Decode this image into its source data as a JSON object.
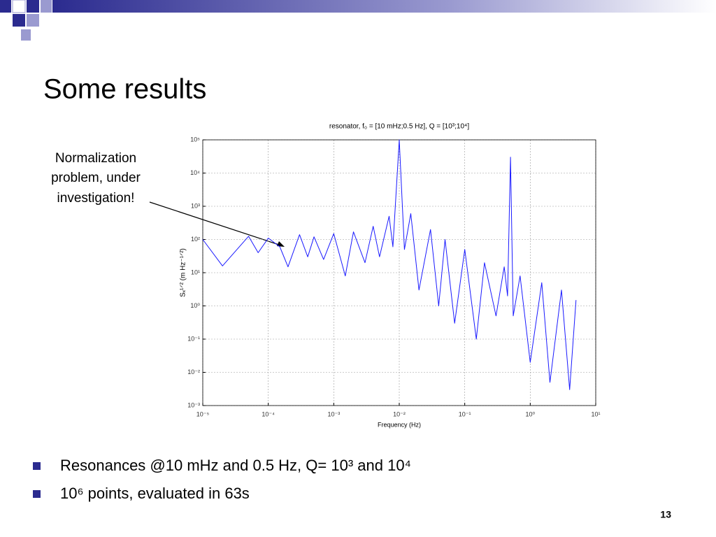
{
  "slide": {
    "title": "Some results",
    "annotation": [
      "Normalization",
      "problem, under",
      "investigation!"
    ],
    "bullets": [
      "Resonances @10 mHz and 0.5 Hz, Q= 10³ and 10⁴",
      "10⁶ points, evaluated in 63s"
    ],
    "page_number": "13"
  },
  "chart_data": {
    "type": "line",
    "title": "resonator, f₀ = [10 mHz;0.5 Hz], Q = [10³;10⁴]",
    "x_label": "Frequency (Hz)",
    "y_label": "Sₓ¹ᐟ² (m Hz⁻¹ᐟ²)",
    "xscale": "log",
    "yscale": "log",
    "grid": true,
    "xlim": [
      1e-05,
      10
    ],
    "ylim": [
      0.001,
      100000
    ],
    "xticks": [
      {
        "value": 1e-05,
        "label": "10⁻⁵"
      },
      {
        "value": 0.0001,
        "label": "10⁻⁴"
      },
      {
        "value": 0.001,
        "label": "10⁻³"
      },
      {
        "value": 0.01,
        "label": "10⁻²"
      },
      {
        "value": 0.1,
        "label": "10⁻¹"
      },
      {
        "value": 1,
        "label": "10⁰"
      },
      {
        "value": 10,
        "label": "10¹"
      }
    ],
    "yticks": [
      {
        "value": 0.001,
        "label": "10⁻³"
      },
      {
        "value": 0.01,
        "label": "10⁻²"
      },
      {
        "value": 0.1,
        "label": "10⁻¹"
      },
      {
        "value": 1,
        "label": "10⁰"
      },
      {
        "value": 10,
        "label": "10¹"
      },
      {
        "value": 100,
        "label": "10²"
      },
      {
        "value": 1000,
        "label": "10³"
      },
      {
        "value": 10000,
        "label": "10⁴"
      },
      {
        "value": 100000,
        "label": "10⁵"
      }
    ],
    "x": [
      1e-05,
      2e-05,
      5e-05,
      7e-05,
      0.0001,
      0.00015,
      0.0002,
      0.0003,
      0.0004,
      0.0005,
      0.0007,
      0.001,
      0.0015,
      0.002,
      0.003,
      0.004,
      0.005,
      0.007,
      0.008,
      0.01,
      0.012,
      0.015,
      0.02,
      0.03,
      0.04,
      0.05,
      0.07,
      0.1,
      0.15,
      0.2,
      0.3,
      0.4,
      0.45,
      0.5,
      0.55,
      0.7,
      1,
      1.5,
      2,
      3,
      4,
      5
    ],
    "series": [
      {
        "color": "#1a1aff",
        "values": [
          100,
          16,
          125,
          40,
          110,
          60,
          15,
          140,
          30,
          120,
          25,
          150,
          8,
          170,
          20,
          250,
          30,
          500,
          60,
          100000,
          50,
          600,
          3,
          200,
          1,
          100,
          0.3,
          50,
          0.1,
          20,
          0.5,
          15,
          2,
          30000,
          0.5,
          8,
          0.02,
          5,
          0.005,
          3,
          0.003,
          1.5
        ]
      }
    ]
  }
}
